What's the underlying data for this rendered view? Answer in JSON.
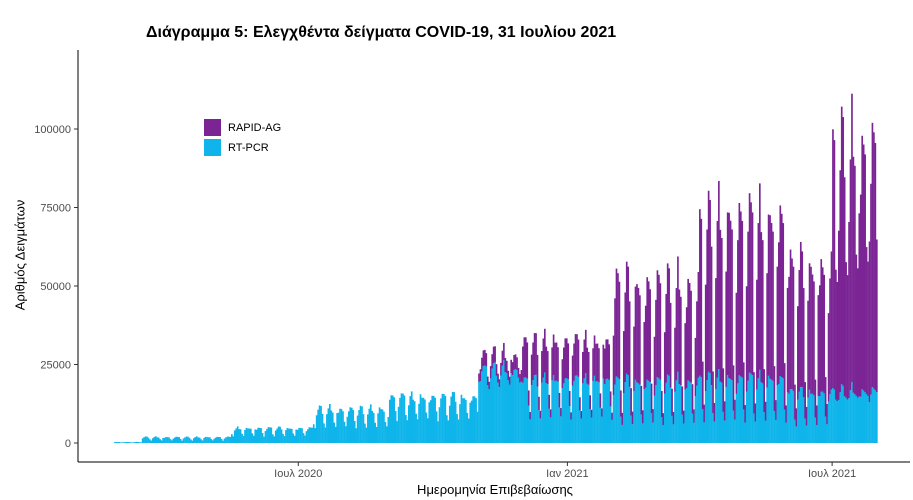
{
  "chart_data": {
    "type": "bar",
    "stacked": true,
    "title": "Διάγραμμα 5: Ελεγχθέντα δείγματα COVID-19, 31 Ιουλίου 2021",
    "xlabel": "Ημερομηνία Επιβεβαίωσης",
    "ylabel": "Αριθμός Δειγμάτων",
    "x_range": [
      "2020-02-26",
      "2021-07-31"
    ],
    "ylim": [
      0,
      120000
    ],
    "y_ticks": [
      0,
      25000,
      50000,
      75000,
      100000
    ],
    "y_tick_labels": [
      "0",
      "25000",
      "50000",
      "75000",
      "100000"
    ],
    "x_ticks": [
      {
        "date": "2020-07-01",
        "label": "Ιουλ 2020"
      },
      {
        "date": "2021-01-01",
        "label": "Ιαν 2021"
      },
      {
        "date": "2021-07-01",
        "label": "Ιουλ 2021"
      }
    ],
    "legend_position": "top-left",
    "series": [
      {
        "name": "RAPID-AG",
        "color": "#7b2595"
      },
      {
        "name": "RT-PCR",
        "color": "#0fb5ea"
      }
    ],
    "periods": [
      {
        "start": "2020-02-26",
        "end": "2020-03-15",
        "pcr_week": [
          200,
          250,
          300,
          350,
          300,
          300,
          200
        ],
        "rapid_week": [
          0,
          0,
          0,
          0,
          0,
          0,
          0
        ]
      },
      {
        "start": "2020-03-16",
        "end": "2020-05-15",
        "pcr_week": [
          1500,
          1800,
          2000,
          1900,
          1800,
          1200,
          800
        ],
        "rapid_week": [
          0,
          0,
          0,
          0,
          0,
          0,
          0
        ]
      },
      {
        "start": "2020-05-16",
        "end": "2020-07-10",
        "pcr_week": [
          4000,
          4500,
          5000,
          4800,
          4600,
          3000,
          2200
        ],
        "rapid_week": [
          0,
          0,
          0,
          0,
          0,
          0,
          0
        ]
      },
      {
        "start": "2020-07-11",
        "end": "2020-08-31",
        "pcr_week": [
          9000,
          10500,
          11500,
          11000,
          10000,
          6500,
          5000
        ],
        "rapid_week": [
          0,
          0,
          0,
          0,
          0,
          0,
          0
        ]
      },
      {
        "start": "2020-09-01",
        "end": "2020-10-31",
        "pcr_week": [
          12000,
          14500,
          15500,
          15000,
          14000,
          9500,
          7500
        ],
        "rapid_week": [
          0,
          0,
          0,
          0,
          0,
          0,
          0
        ]
      },
      {
        "start": "2020-11-01",
        "end": "2020-11-30",
        "pcr_week": [
          21000,
          23500,
          24500,
          24000,
          23000,
          20000,
          18000
        ],
        "rapid_week": [
          4000,
          4500,
          5000,
          4800,
          4000,
          3000,
          2500
        ]
      },
      {
        "start": "2020-12-01",
        "end": "2021-01-31",
        "pcr_week": [
          19000,
          20000,
          21000,
          20500,
          19500,
          11000,
          8000
        ],
        "rapid_week": [
          10000,
          12000,
          13000,
          12500,
          11000,
          4500,
          2500
        ]
      },
      {
        "start": "2021-02-01",
        "end": "2021-03-31",
        "pcr_week": [
          16000,
          19000,
          21000,
          20000,
          19000,
          9000,
          6000
        ],
        "rapid_week": [
          20000,
          28000,
          34000,
          32000,
          29000,
          9000,
          4000
        ]
      },
      {
        "start": "2021-04-01",
        "end": "2021-05-31",
        "pcr_week": [
          17000,
          20000,
          22000,
          21000,
          20000,
          10000,
          7000
        ],
        "rapid_week": [
          35000,
          48000,
          56000,
          52000,
          48000,
          14000,
          6000
        ]
      },
      {
        "start": "2021-06-01",
        "end": "2021-06-30",
        "pcr_week": [
          14000,
          16000,
          17000,
          16500,
          15500,
          8000,
          5500
        ],
        "rapid_week": [
          30000,
          38000,
          44000,
          40000,
          37000,
          12000,
          6000
        ]
      },
      {
        "start": "2021-07-01",
        "end": "2021-07-31",
        "pcr_week": [
          14000,
          16000,
          18000,
          17000,
          16000,
          15000,
          14000
        ],
        "rapid_week": [
          55000,
          70000,
          85000,
          80000,
          75000,
          45000,
          40000
        ]
      }
    ]
  }
}
